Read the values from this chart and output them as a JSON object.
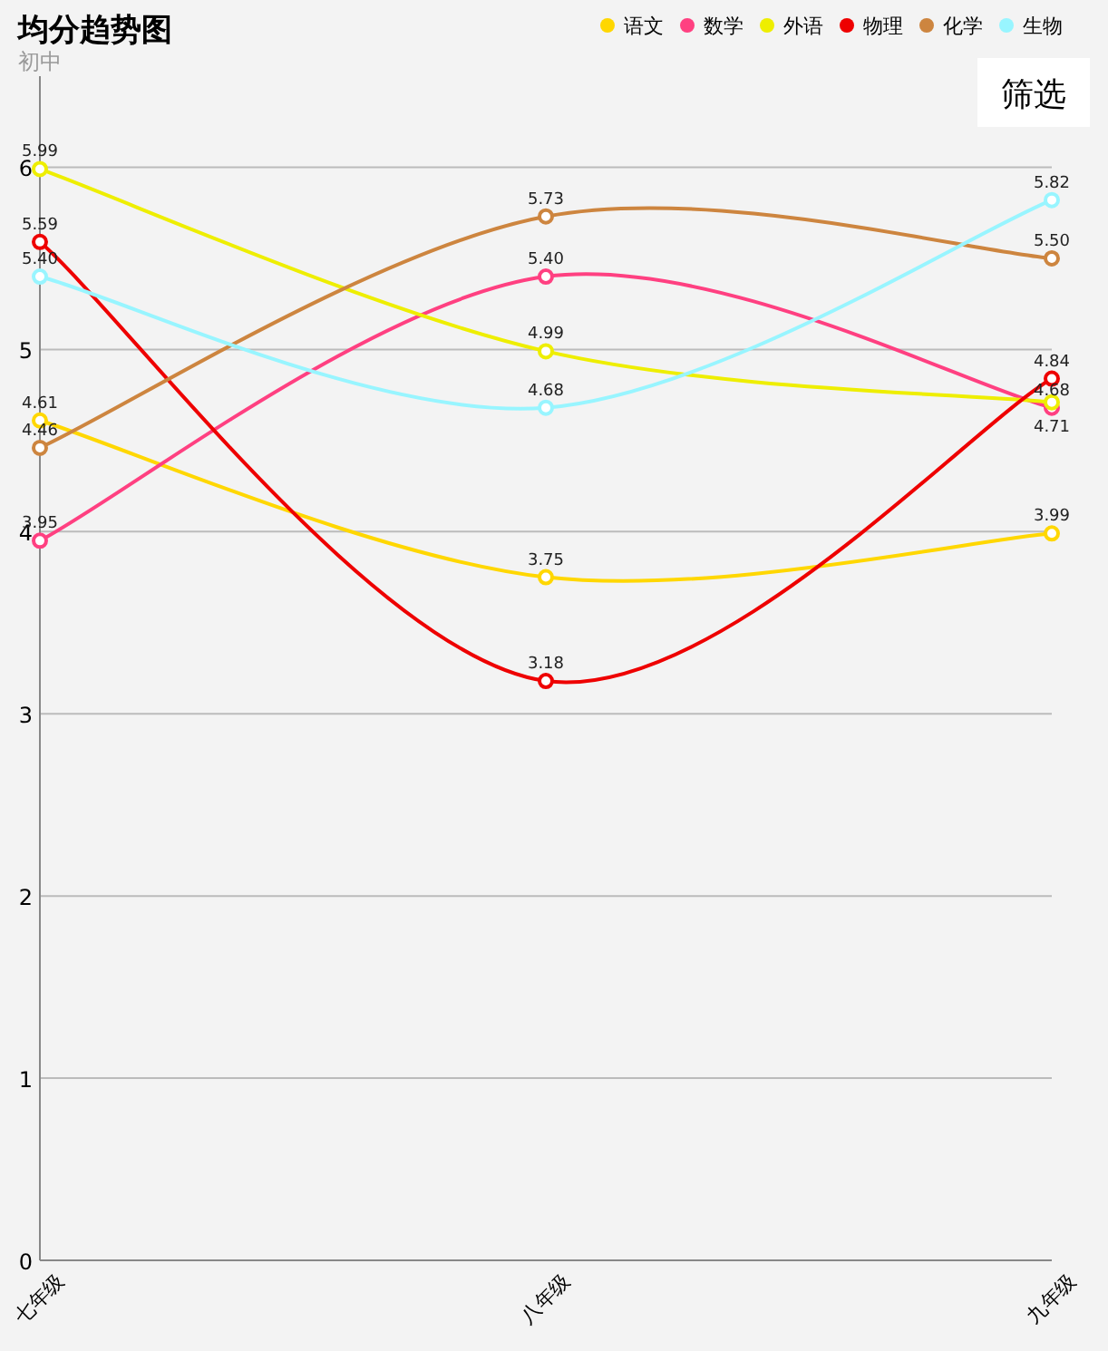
{
  "chart_data": {
    "type": "line",
    "title": "均分趋势图",
    "subtitle": "初中",
    "annotations": [
      "筛选"
    ],
    "categories": [
      "七年级",
      "八年级",
      "九年级"
    ],
    "ylim": [
      0,
      6.5
    ],
    "yticks": [
      0,
      1,
      2,
      3,
      4,
      5,
      6
    ],
    "grid": "y",
    "legend": "top right",
    "marker": "circle",
    "line_style": "solid",
    "series": [
      {
        "name": "语文",
        "color": "#ffd700",
        "values": [
          4.61,
          3.75,
          3.99
        ],
        "value_labels": [
          "4.61",
          "3.75",
          "3.99"
        ]
      },
      {
        "name": "数学",
        "color": "#ff4081",
        "values": [
          3.95,
          5.4,
          4.68
        ],
        "value_labels": [
          "3.95",
          "5.40",
          "4.68"
        ]
      },
      {
        "name": "外语",
        "color": "#eeee00",
        "values": [
          5.99,
          4.99,
          4.71
        ],
        "value_labels": [
          "5.99",
          "4.99",
          "4.71"
        ]
      },
      {
        "name": "物理",
        "color": "#ee0000",
        "values": [
          5.59,
          3.18,
          4.84
        ],
        "value_labels": [
          "5.59",
          "3.18",
          "4.84"
        ]
      },
      {
        "name": "化学",
        "color": "#cd853f",
        "values": [
          4.46,
          5.73,
          5.5
        ],
        "value_labels": [
          "4.46",
          "5.73",
          "5.50"
        ]
      },
      {
        "name": "生物",
        "color": "#98f5ff",
        "values": [
          5.4,
          4.68,
          5.82
        ],
        "value_labels": [
          "5.40",
          "4.68",
          "5.82"
        ]
      }
    ]
  }
}
